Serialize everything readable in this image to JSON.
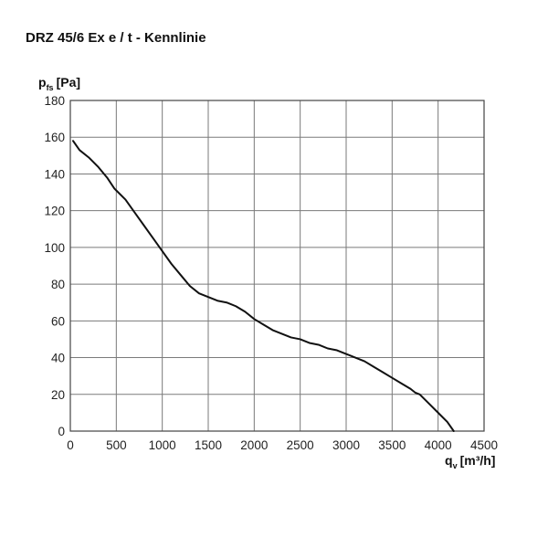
{
  "chart_data": {
    "type": "line",
    "title": "DRZ 45/6 Ex e / t - Kennlinie",
    "ylabel": {
      "main": "p",
      "sub": "fs",
      "unit": "[Pa]"
    },
    "xlabel": {
      "main": "q",
      "sub": "v",
      "unit": "[m³/h]"
    },
    "xlim": [
      0,
      4500
    ],
    "ylim": [
      0,
      180
    ],
    "xticks": [
      0,
      500,
      1000,
      1500,
      2000,
      2500,
      3000,
      3500,
      4000,
      4500
    ],
    "yticks": [
      0,
      20,
      40,
      60,
      80,
      100,
      120,
      140,
      160,
      180
    ],
    "grid": true,
    "series": [
      {
        "color": "#111111",
        "x": [
          30,
          100,
          200,
          300,
          400,
          480,
          600,
          700,
          800,
          900,
          1000,
          1100,
          1200,
          1300,
          1400,
          1500,
          1600,
          1700,
          1800,
          1900,
          2000,
          2100,
          2200,
          2300,
          2400,
          2500,
          2600,
          2700,
          2800,
          2900,
          3000,
          3100,
          3200,
          3300,
          3400,
          3500,
          3600,
          3700,
          3750,
          3800,
          3900,
          4000,
          4100,
          4170
        ],
        "y": [
          158,
          153,
          149,
          144,
          138,
          132,
          126,
          119,
          112,
          105,
          98,
          91,
          85,
          79,
          75,
          73,
          71,
          70,
          68,
          65,
          61,
          58,
          55,
          53,
          51,
          50,
          48,
          47,
          45,
          44,
          42,
          40,
          38,
          35,
          32,
          29,
          26,
          23,
          21,
          20,
          15,
          10,
          5,
          0
        ]
      }
    ]
  }
}
